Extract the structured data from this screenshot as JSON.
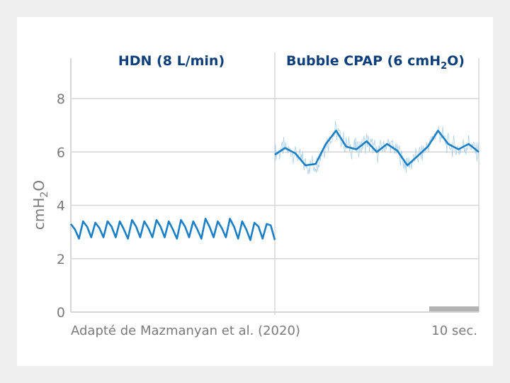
{
  "chart_data": {
    "type": "line",
    "panels": [
      {
        "title": "HDN (8 L/min)",
        "x_range": [
          0,
          10
        ]
      },
      {
        "title_parts": [
          "Bubble CPAP (6 cmH",
          "2",
          "O)"
        ],
        "x_range": [
          10,
          20
        ]
      }
    ],
    "ylabel": {
      "main": "cmH",
      "sub": "2",
      "tail": "O"
    },
    "yticks": [
      0,
      2,
      4,
      6,
      8
    ],
    "ylim": [
      0,
      8.3
    ],
    "grid": true,
    "series": [
      {
        "panel": 0,
        "x": [
          0.0,
          0.2,
          0.4,
          0.6,
          0.8,
          1.0,
          1.2,
          1.4,
          1.6,
          1.8,
          2.0,
          2.2,
          2.4,
          2.6,
          2.8,
          3.0,
          3.2,
          3.4,
          3.6,
          3.8,
          4.0,
          4.2,
          4.4,
          4.6,
          4.8,
          5.0,
          5.2,
          5.4,
          5.6,
          5.8,
          6.0,
          6.2,
          6.4,
          6.6,
          6.8,
          7.0,
          7.2,
          7.4,
          7.6,
          7.8,
          8.0,
          8.2,
          8.4,
          8.6,
          8.8,
          9.0,
          9.2,
          9.4,
          9.6,
          9.8,
          10.0
        ],
        "values": [
          3.3,
          3.1,
          2.75,
          3.4,
          3.2,
          2.8,
          3.35,
          3.15,
          2.8,
          3.4,
          3.2,
          2.8,
          3.4,
          3.1,
          2.75,
          3.45,
          3.2,
          2.8,
          3.4,
          3.15,
          2.8,
          3.45,
          3.2,
          2.8,
          3.4,
          3.1,
          2.75,
          3.45,
          3.2,
          2.8,
          3.4,
          3.1,
          2.75,
          3.5,
          3.2,
          2.8,
          3.4,
          3.15,
          2.8,
          3.5,
          3.2,
          2.75,
          3.4,
          3.1,
          2.7,
          3.35,
          3.2,
          2.75,
          3.3,
          3.25,
          2.7
        ]
      },
      {
        "panel": 1,
        "x": [
          10.0,
          10.5,
          11.0,
          11.5,
          12.0,
          12.5,
          13.0,
          13.5,
          14.0,
          14.5,
          15.0,
          15.5,
          16.0,
          16.5,
          17.0,
          17.5,
          18.0,
          18.5,
          19.0,
          19.5,
          20.0
        ],
        "values": [
          5.9,
          6.15,
          5.95,
          5.5,
          5.55,
          6.3,
          6.8,
          6.2,
          6.1,
          6.4,
          6.0,
          6.3,
          6.05,
          5.5,
          5.85,
          6.2,
          6.8,
          6.3,
          6.1,
          6.3,
          6.0
        ],
        "noise_band": 0.45
      }
    ],
    "reference_line": {
      "y": 6,
      "x_range": [
        10,
        20
      ]
    },
    "annotations": {
      "source": "Adapté de Mazmanyan et al. (2020)",
      "scale_bar": "10 sec."
    }
  },
  "colors": {
    "line": "#1a7fc6",
    "noise": "#8fc0e3",
    "grid": "#d6d6d6",
    "title": "#0d3f7a",
    "text": "#7a7a7a",
    "scale_bar": "#b3b3b3",
    "background": "#efefef"
  }
}
